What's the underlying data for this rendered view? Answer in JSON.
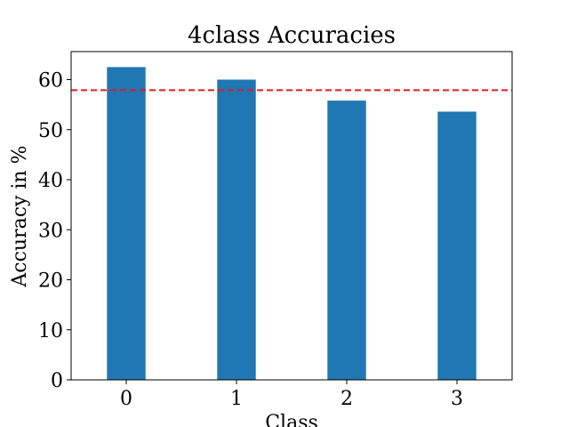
{
  "chart_data": {
    "type": "bar",
    "title": "4class Accuracies",
    "xlabel": "Class",
    "ylabel": "Accuracy in %",
    "categories": [
      "0",
      "1",
      "2",
      "3"
    ],
    "values": [
      62.5,
      60.0,
      55.8,
      53.6
    ],
    "reference_line": {
      "value": 57.9,
      "color": "#e41a1c",
      "style": "dashed"
    },
    "ylim": [
      0,
      65.6
    ],
    "yticks": [
      0,
      10,
      20,
      30,
      40,
      50,
      60
    ],
    "bar_color": "#1f77b4",
    "grid": false
  }
}
